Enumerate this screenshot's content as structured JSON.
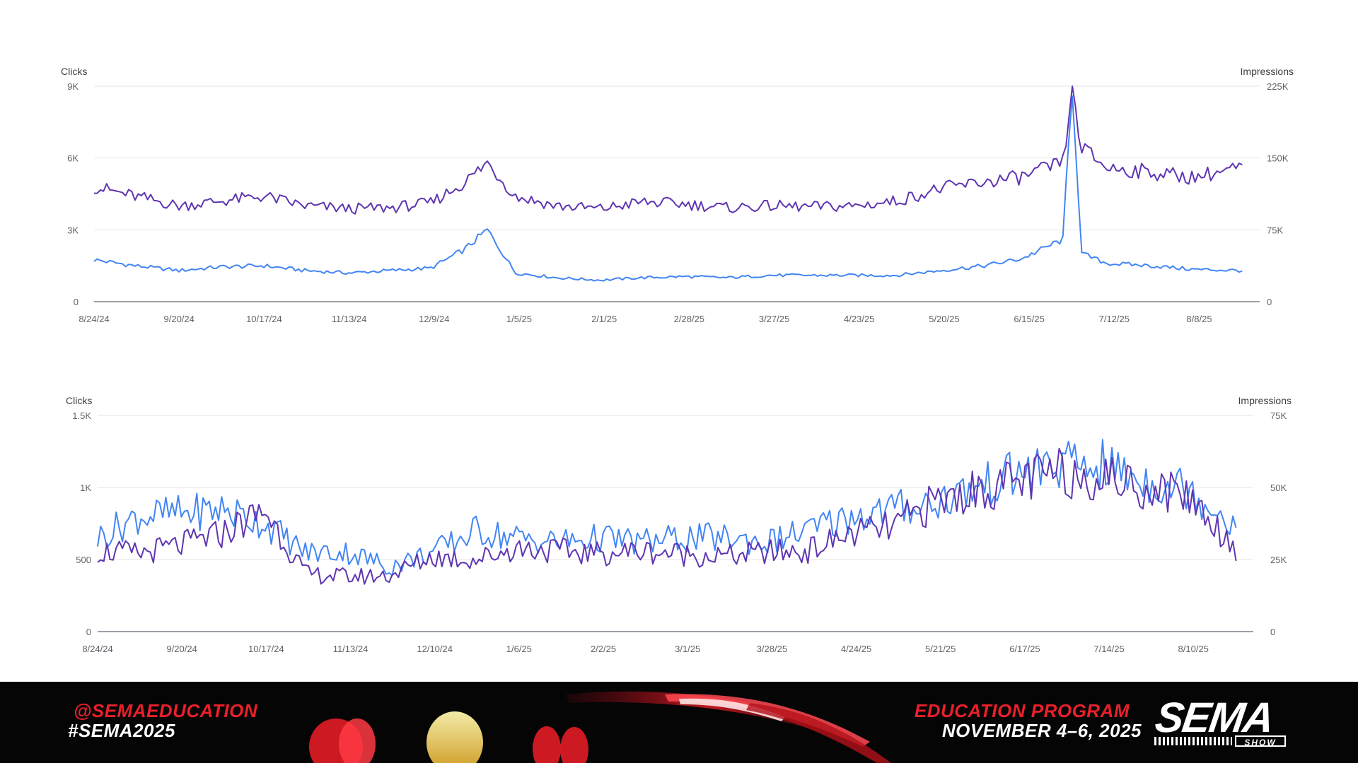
{
  "chart_data": [
    {
      "type": "line",
      "y_left_label": "Clicks",
      "y_right_label": "Impressions",
      "y_left_ticks": [
        "9K",
        "6K",
        "3K",
        "0"
      ],
      "y_left_tick_values": [
        9000,
        6000,
        3000,
        0
      ],
      "y_right_ticks": [
        "225K",
        "150K",
        "75K",
        "0"
      ],
      "y_right_tick_values": [
        225000,
        150000,
        75000,
        0
      ],
      "ylim_left": [
        0,
        9000
      ],
      "ylim_right": [
        0,
        225000
      ],
      "x_tick_labels": [
        "8/24/24",
        "9/20/24",
        "10/17/24",
        "11/13/24",
        "12/9/24",
        "1/5/25",
        "2/1/25",
        "2/28/25",
        "3/27/25",
        "4/23/25",
        "5/20/25",
        "6/15/25",
        "7/12/25",
        "8/8/25"
      ],
      "grid": true,
      "series": [
        {
          "axis": "left",
          "color": "#4285f4",
          "x": [
            "8/24/24",
            "9/6/24",
            "9/20/24",
            "10/3/24",
            "10/17/24",
            "10/30/24",
            "11/13/24",
            "11/26/24",
            "12/9/24",
            "12/20/24",
            "12/27/24",
            "1/5/25",
            "1/18/25",
            "2/1/25",
            "2/14/25",
            "2/28/25",
            "3/13/25",
            "3/27/25",
            "4/9/25",
            "4/23/25",
            "5/6/25",
            "5/20/25",
            "6/3/25",
            "6/15/25",
            "6/28/25",
            "7/1/25",
            "7/4/25",
            "7/12/25",
            "7/26/25",
            "8/8/25",
            "8/24/25"
          ],
          "values": [
            1750,
            1500,
            1300,
            1450,
            1500,
            1300,
            1200,
            1300,
            1400,
            2200,
            3000,
            1200,
            1000,
            900,
            1000,
            1050,
            1000,
            1100,
            1100,
            1100,
            1100,
            1300,
            1500,
            1800,
            2600,
            9000,
            2000,
            1600,
            1500,
            1350,
            1300
          ]
        },
        {
          "axis": "right",
          "color": "#5e35b1",
          "x": [
            "8/24/24",
            "9/6/24",
            "9/20/24",
            "10/3/24",
            "10/17/24",
            "10/30/24",
            "11/13/24",
            "11/26/24",
            "12/9/24",
            "12/20/24",
            "12/27/24",
            "1/5/25",
            "1/18/25",
            "2/1/25",
            "2/14/25",
            "2/28/25",
            "3/13/25",
            "3/27/25",
            "4/9/25",
            "4/23/25",
            "5/6/25",
            "5/20/25",
            "6/3/25",
            "6/15/25",
            "6/28/25",
            "7/1/25",
            "7/4/25",
            "7/12/25",
            "7/26/25",
            "8/8/25",
            "8/24/25"
          ],
          "values": [
            120000,
            110000,
            100000,
            105000,
            110000,
            100000,
            97000,
            98000,
            103000,
            125000,
            145000,
            110000,
            100000,
            97000,
            104000,
            102000,
            98000,
            100000,
            99000,
            100000,
            105000,
            118000,
            125000,
            130000,
            145000,
            220000,
            160000,
            140000,
            135000,
            130000,
            140000
          ]
        }
      ]
    },
    {
      "type": "line",
      "y_left_label": "Clicks",
      "y_right_label": "Impressions",
      "y_left_ticks": [
        "1.5K",
        "1K",
        "500",
        "0"
      ],
      "y_left_tick_values": [
        1500,
        1000,
        500,
        0
      ],
      "y_right_ticks": [
        "75K",
        "50K",
        "25K",
        "0"
      ],
      "y_right_tick_values": [
        75000,
        50000,
        25000,
        0
      ],
      "ylim_left": [
        0,
        1500
      ],
      "ylim_right": [
        0,
        75000
      ],
      "x_tick_labels": [
        "8/24/24",
        "9/20/24",
        "10/17/24",
        "11/13/24",
        "12/10/24",
        "1/6/25",
        "2/2/25",
        "3/1/25",
        "3/28/25",
        "4/24/25",
        "5/21/25",
        "6/17/25",
        "7/14/25",
        "8/10/25"
      ],
      "grid": true,
      "series": [
        {
          "axis": "left",
          "color": "#4285f4",
          "x": [
            "8/24/24",
            "9/6/24",
            "9/20/24",
            "10/3/24",
            "10/17/24",
            "10/30/24",
            "11/13/24",
            "11/26/24",
            "12/10/24",
            "12/24/24",
            "1/6/25",
            "1/20/25",
            "2/2/25",
            "2/15/25",
            "3/1/25",
            "3/14/25",
            "3/28/25",
            "4/10/25",
            "4/24/25",
            "5/7/25",
            "5/21/25",
            "6/4/25",
            "6/17/25",
            "6/30/25",
            "7/14/25",
            "7/27/25",
            "8/10/25",
            "8/26/25"
          ],
          "values": [
            650,
            800,
            820,
            850,
            750,
            550,
            550,
            450,
            550,
            700,
            650,
            620,
            650,
            620,
            650,
            650,
            620,
            700,
            800,
            850,
            900,
            1000,
            1100,
            1150,
            1150,
            1050,
            1000,
            750
          ]
        },
        {
          "axis": "right",
          "color": "#5e35b1",
          "x": [
            "8/24/24",
            "9/6/24",
            "9/20/24",
            "10/3/24",
            "10/17/24",
            "10/30/24",
            "11/13/24",
            "11/26/24",
            "12/10/24",
            "12/24/24",
            "1/6/25",
            "1/20/25",
            "2/2/25",
            "2/15/25",
            "3/1/25",
            "3/14/25",
            "3/28/25",
            "4/10/25",
            "4/24/25",
            "5/7/25",
            "5/21/25",
            "6/4/25",
            "6/17/25",
            "6/30/25",
            "7/14/25",
            "7/27/25",
            "8/10/25",
            "8/26/25"
          ],
          "values": [
            28000,
            27000,
            30000,
            34000,
            42000,
            20000,
            19000,
            19500,
            26000,
            25000,
            29000,
            28000,
            27000,
            28000,
            27000,
            26000,
            27500,
            28000,
            34000,
            36000,
            45000,
            49000,
            52000,
            55000,
            54000,
            50000,
            48000,
            29000
          ]
        }
      ]
    }
  ],
  "footer": {
    "handle": "@SEMAEDUCATION",
    "hashtag": "#SEMA2025",
    "program": "EDUCATION PROGRAM",
    "dates": "NOVEMBER 4–6, 2025",
    "logo_text": "SEMA",
    "logo_badge": "SHOW",
    "accent_color": "#e8202a"
  }
}
